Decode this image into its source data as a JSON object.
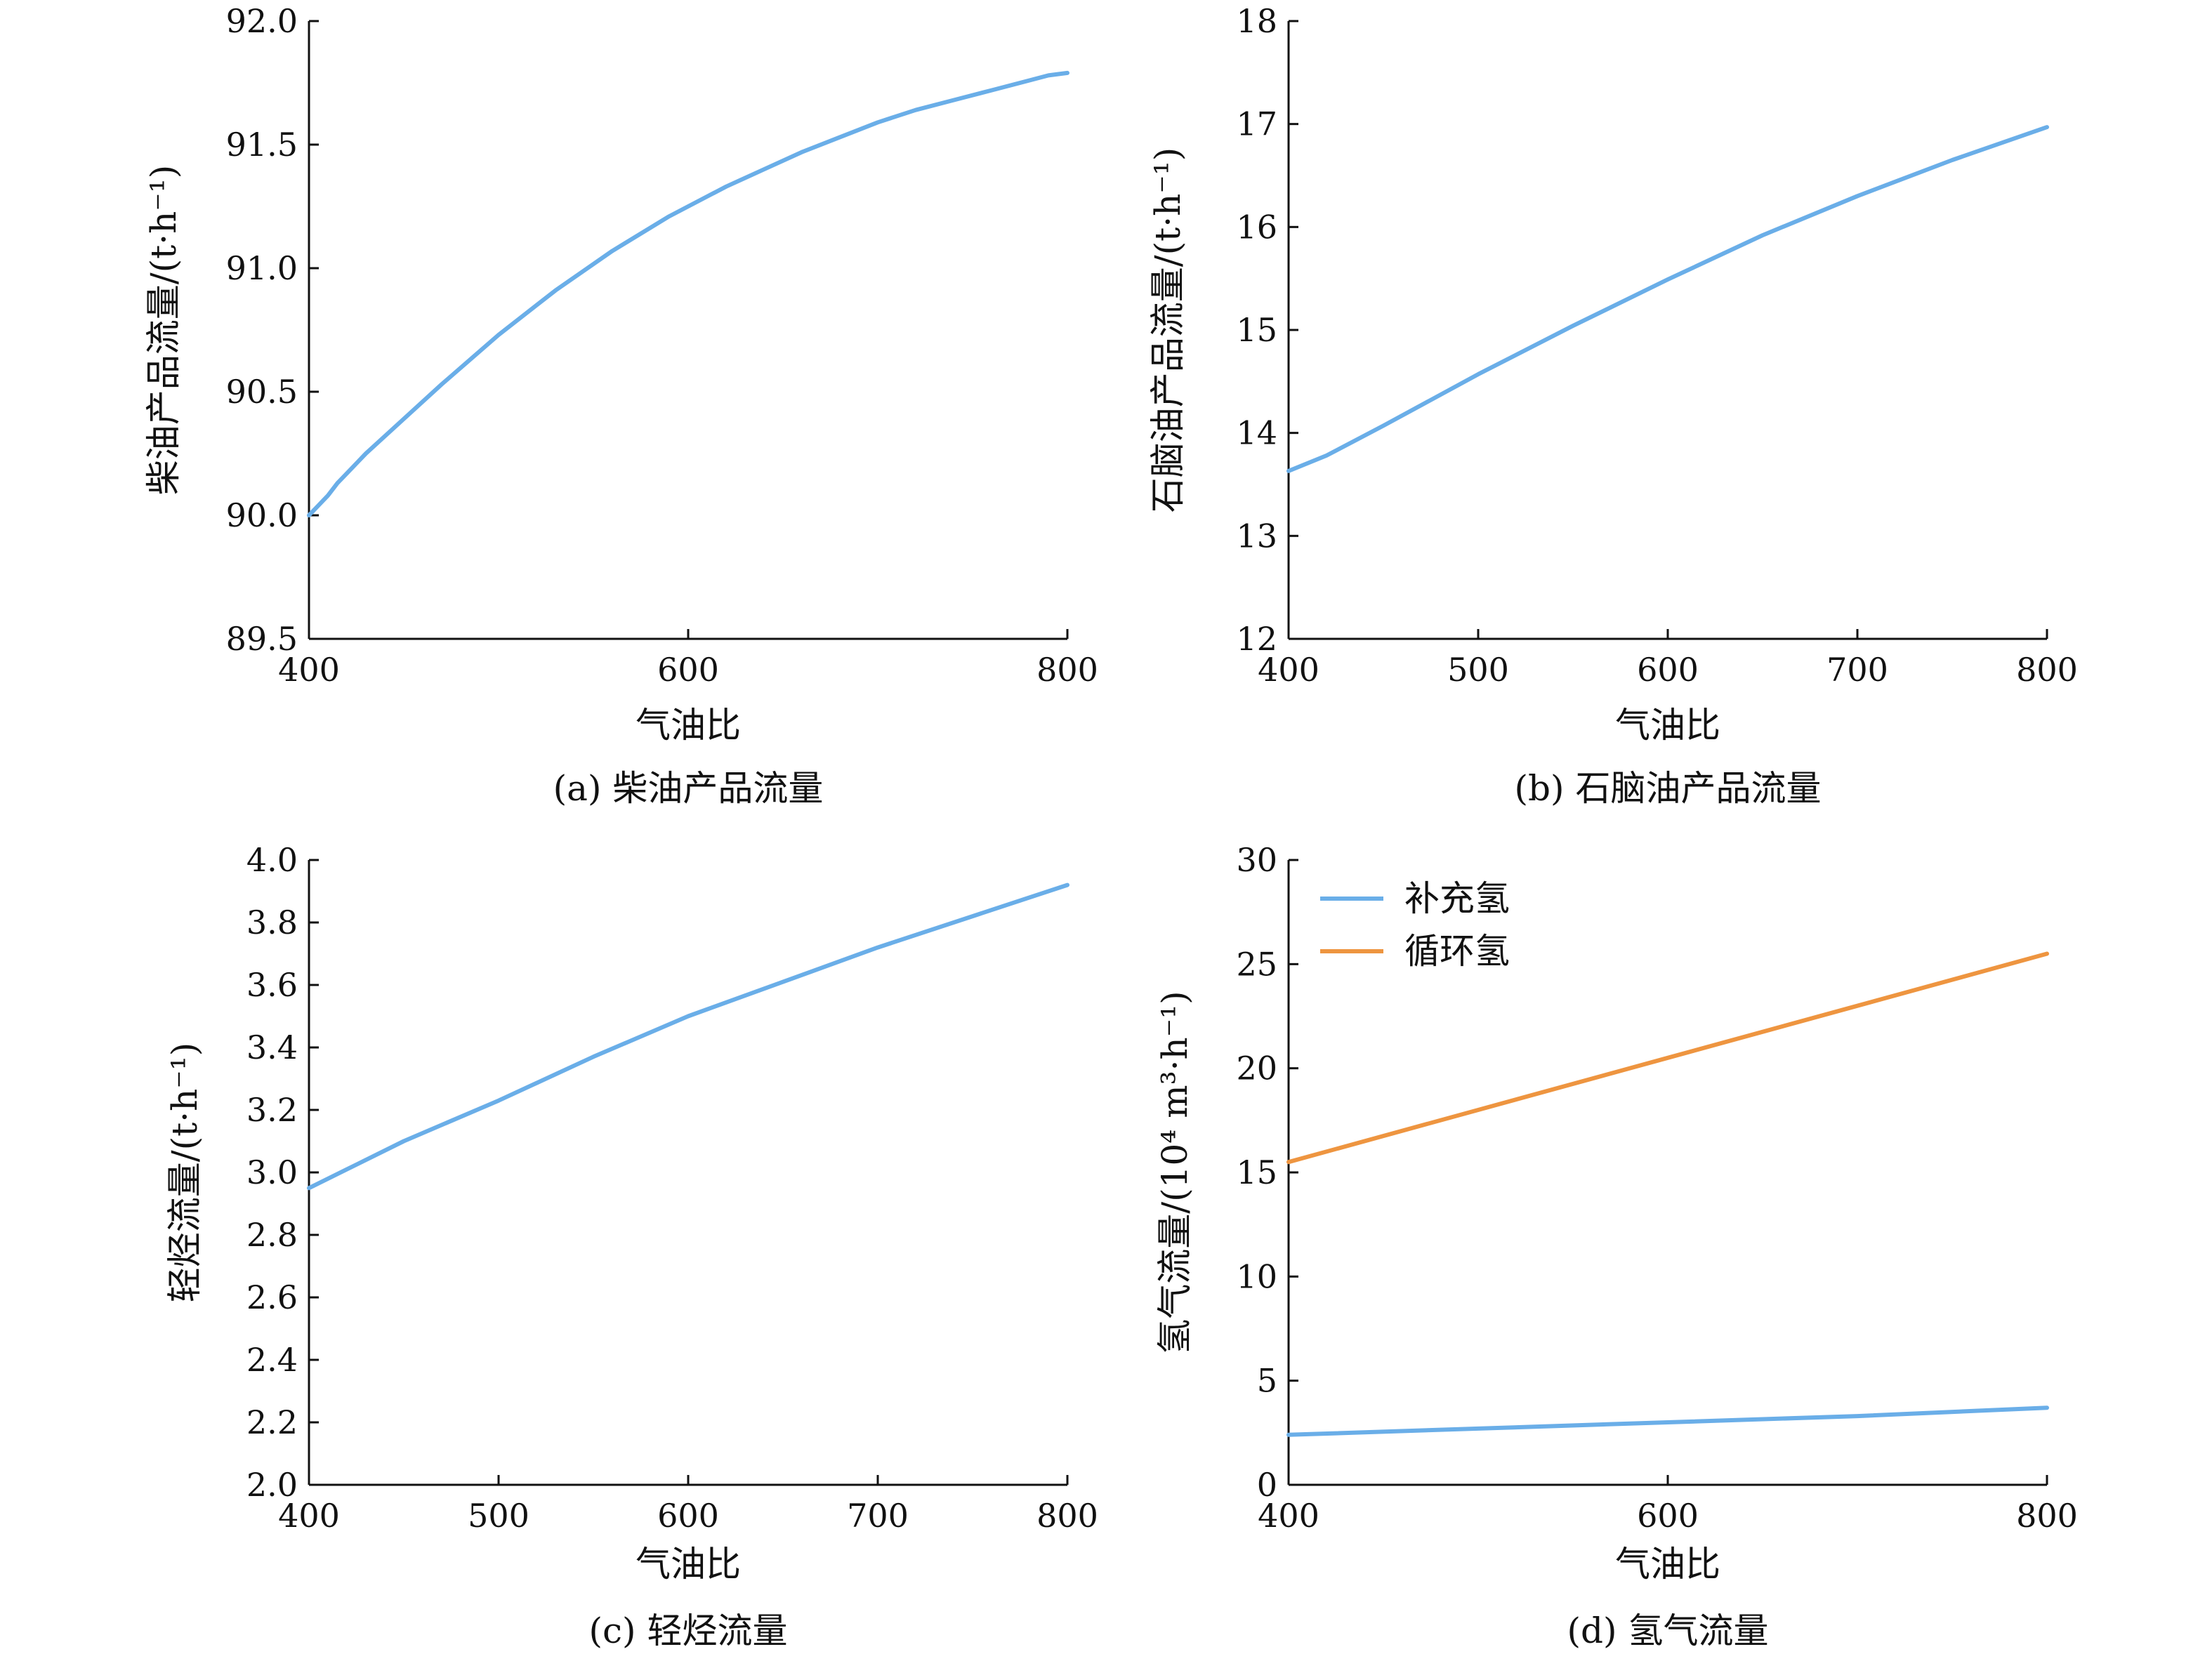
{
  "colors": {
    "blue": "#6aaee8",
    "orange": "#ee9540",
    "axis": "#111111"
  },
  "chart_data": [
    {
      "id": "a",
      "type": "line",
      "caption": "(a) 柴油产品流量",
      "xlabel": "气油比",
      "ylabel": "柴油产品流量/(t·h⁻¹)",
      "xlim": [
        400,
        800
      ],
      "ylim": [
        89.5,
        92.0
      ],
      "xticks": [
        400,
        600,
        800
      ],
      "xtick_labels": [
        "400",
        "600",
        "800"
      ],
      "yticks": [
        89.5,
        90.0,
        90.5,
        91.0,
        91.5,
        92.0
      ],
      "ytick_labels": [
        "89.5",
        "90.0",
        "90.5",
        "91.0",
        "91.5",
        "92.0"
      ],
      "series": [
        {
          "name": "",
          "color": "blue",
          "x": [
            400,
            405,
            410,
            415,
            420,
            430,
            450,
            470,
            500,
            530,
            560,
            590,
            610,
            620,
            640,
            660,
            680,
            700,
            720,
            740,
            760,
            780,
            790,
            800
          ],
          "y": [
            90.0,
            90.04,
            90.08,
            90.13,
            90.17,
            90.25,
            90.39,
            90.53,
            90.73,
            90.91,
            91.07,
            91.21,
            91.29,
            91.33,
            91.4,
            91.47,
            91.53,
            91.59,
            91.64,
            91.68,
            91.72,
            91.76,
            91.78,
            91.79
          ]
        }
      ],
      "legend": []
    },
    {
      "id": "b",
      "type": "line",
      "caption": "(b) 石脑油产品流量",
      "xlabel": "气油比",
      "ylabel": "石脑油产品流量/(t·h⁻¹)",
      "xlim": [
        400,
        800
      ],
      "ylim": [
        12,
        18
      ],
      "xticks": [
        400,
        500,
        600,
        700,
        800
      ],
      "xtick_labels": [
        "400",
        "500",
        "600",
        "700",
        "800"
      ],
      "yticks": [
        12,
        13,
        14,
        15,
        16,
        17,
        18
      ],
      "ytick_labels": [
        "12",
        "13",
        "14",
        "15",
        "16",
        "17",
        "18"
      ],
      "series": [
        {
          "name": "",
          "color": "blue",
          "x": [
            400,
            420,
            450,
            500,
            550,
            600,
            650,
            700,
            750,
            800
          ],
          "y": [
            13.63,
            13.78,
            14.07,
            14.57,
            15.04,
            15.49,
            15.92,
            16.3,
            16.65,
            16.97
          ]
        }
      ],
      "legend": []
    },
    {
      "id": "c",
      "type": "line",
      "caption": "(c) 轻烃流量",
      "xlabel": "气油比",
      "ylabel": "轻烃流量/(t·h⁻¹)",
      "xlim": [
        400,
        800
      ],
      "ylim": [
        2.0,
        4.0
      ],
      "xticks": [
        400,
        500,
        600,
        700,
        800
      ],
      "xtick_labels": [
        "400",
        "500",
        "600",
        "700",
        "800"
      ],
      "yticks": [
        2.0,
        2.2,
        2.4,
        2.6,
        2.8,
        3.0,
        3.2,
        3.4,
        3.6,
        3.8,
        4.0
      ],
      "ytick_labels": [
        "2.0",
        "2.2",
        "2.4",
        "2.6",
        "2.8",
        "3.0",
        "3.2",
        "3.4",
        "3.6",
        "3.8",
        "4.0"
      ],
      "series": [
        {
          "name": "",
          "color": "blue",
          "x": [
            400,
            420,
            450,
            500,
            550,
            600,
            650,
            700,
            750,
            800
          ],
          "y": [
            2.95,
            3.01,
            3.1,
            3.23,
            3.37,
            3.5,
            3.61,
            3.72,
            3.82,
            3.92
          ]
        }
      ],
      "legend": []
    },
    {
      "id": "d",
      "type": "line",
      "caption": "(d) 氢气流量",
      "xlabel": "气油比",
      "ylabel": "氢气流量/(10⁴ m³·h⁻¹)",
      "xlim": [
        400,
        800
      ],
      "ylim": [
        0,
        30
      ],
      "xticks": [
        400,
        600,
        800
      ],
      "xtick_labels": [
        "400",
        "600",
        "800"
      ],
      "yticks": [
        0,
        5,
        10,
        15,
        20,
        25,
        30
      ],
      "ytick_labels": [
        "0",
        "5",
        "10",
        "15",
        "20",
        "25",
        "30"
      ],
      "series": [
        {
          "name": "补充氢",
          "color": "blue",
          "x": [
            400,
            500,
            600,
            700,
            800
          ],
          "y": [
            2.4,
            2.7,
            3.0,
            3.3,
            3.7
          ]
        },
        {
          "name": "循环氢",
          "color": "orange",
          "x": [
            400,
            500,
            600,
            700,
            800
          ],
          "y": [
            15.5,
            18.0,
            20.5,
            23.0,
            25.5
          ]
        }
      ],
      "legend": [
        "补充氢",
        "循环氢"
      ],
      "legend_position": "top-left"
    }
  ]
}
